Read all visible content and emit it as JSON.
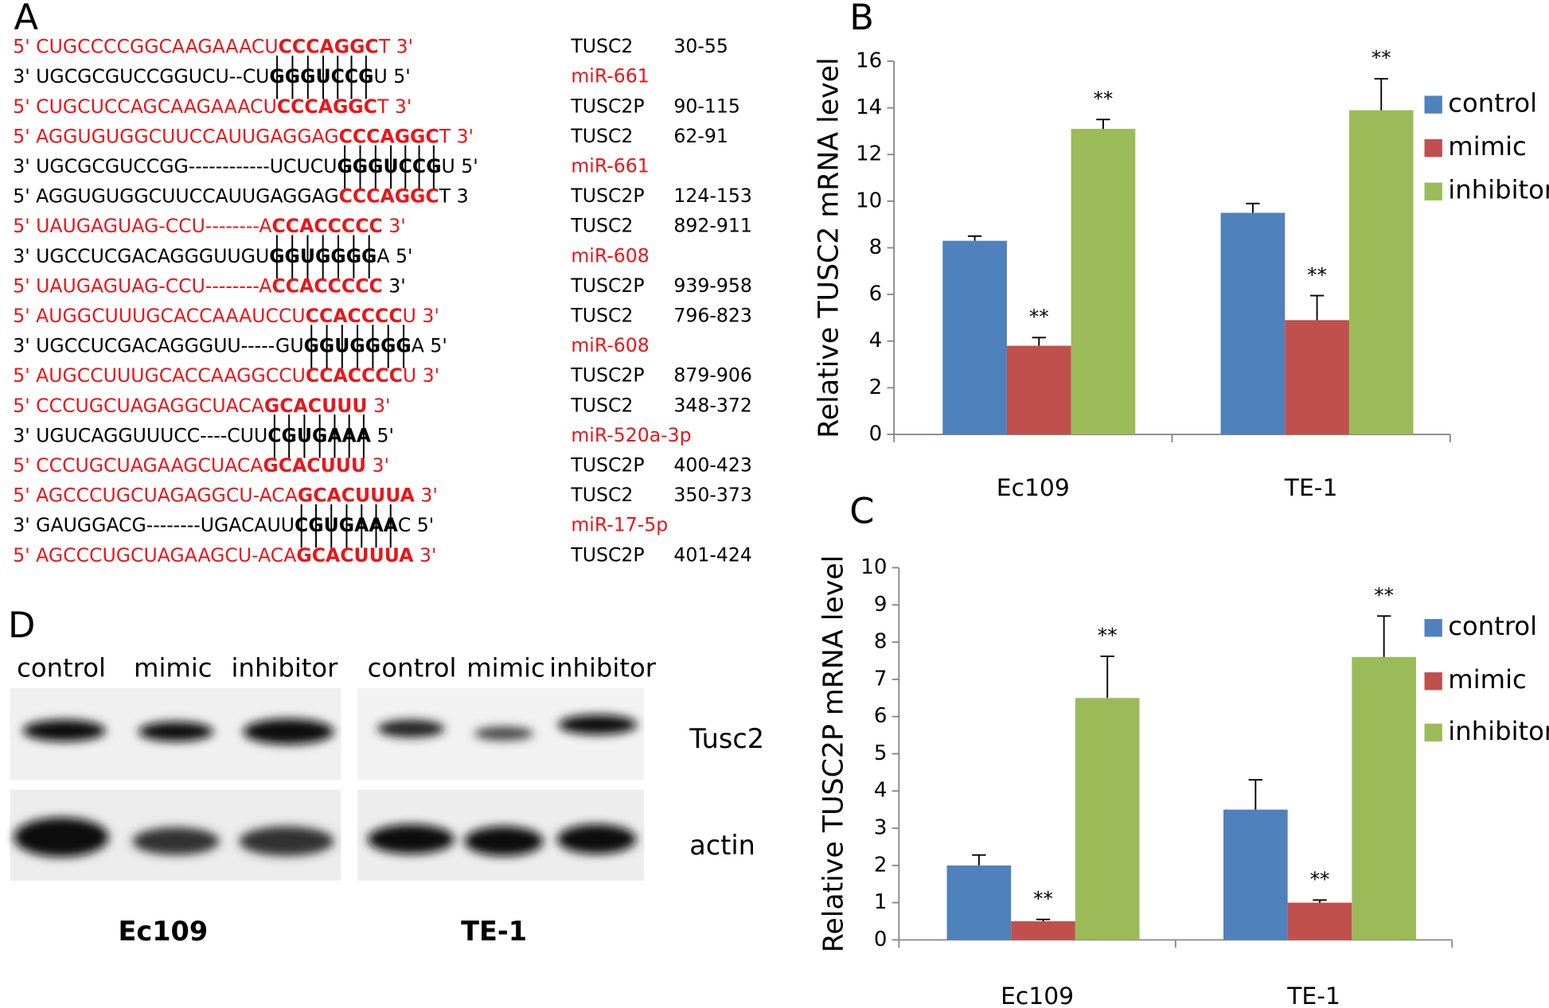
{
  "panel_labels": [
    "A",
    "B",
    "C",
    "D"
  ],
  "alignments": [
    {
      "segments": [
        {
          "text": "5' CUGCCCCGGCAAGAAACU",
          "color": "#e8161b"
        },
        {
          "text": "CCCAGGC",
          "color": "#e8161b",
          "bold": true
        },
        {
          "text": "T 3'",
          "color": "#e8161b"
        }
      ],
      "label": "TUSC2",
      "label_color": "#000000",
      "range": "30-55"
    },
    {
      "segments": [
        {
          "text": "3' UGCGCGUCCGGUCU--CU",
          "color": "#000000"
        },
        {
          "text": "GGGUCCG",
          "color": "#000000",
          "bold": true
        },
        {
          "text": "U 5'",
          "color": "#000000"
        }
      ],
      "label": "miR-661",
      "label_color": "#e8161b"
    },
    {
      "segments": [
        {
          "text": "5' CUGCUCCAGCAAGAAACU",
          "color": "#e8161b"
        },
        {
          "text": "CCCAGGC",
          "color": "#e8161b",
          "bold": true
        },
        {
          "text": "T 3'",
          "color": "#e8161b"
        }
      ],
      "label": "TUSC2P",
      "label_color": "#000000",
      "range": "90-115"
    },
    {
      "segments": [
        {
          "text": "5' AGGUGUGGCUUCCAUUGAGGAG",
          "color": "#e8161b"
        },
        {
          "text": "CCCAGGC",
          "color": "#e8161b",
          "bold": true
        },
        {
          "text": "T 3'",
          "color": "#e8161b"
        }
      ],
      "label": "TUSC2",
      "label_color": "#000000",
      "range": "62-91"
    },
    {
      "segments": [
        {
          "text": "3' UGCGCGUCCGG------------UCUCU",
          "color": "#000000"
        },
        {
          "text": "GGGUCCG",
          "color": "#000000",
          "bold": true
        },
        {
          "text": "U 5'",
          "color": "#000000"
        }
      ],
      "label": "miR-661",
      "label_color": "#e8161b"
    },
    {
      "segments": [
        {
          "text": "5' AGGUGUGGCUUCCAUUGAGGAG",
          "color": "#000000"
        },
        {
          "text": "CCCAGGC",
          "color": "#e8161b",
          "bold": true
        },
        {
          "text": "T 3",
          "color": "#000000"
        }
      ],
      "label": "TUSC2P",
      "label_color": "#000000",
      "range": "124-153"
    },
    {
      "segments": [
        {
          "text": "5' UAUGAGUAG-CCU--------A",
          "color": "#e8161b"
        },
        {
          "text": "CCACCCCC",
          "color": "#e8161b",
          "bold": true
        },
        {
          "text": " 3'",
          "color": "#e8161b"
        }
      ],
      "label": "TUSC2",
      "label_color": "#000000",
      "range": "892-911"
    },
    {
      "segments": [
        {
          "text": "3' UGCCUCGACAGGGUUGU",
          "color": "#000000"
        },
        {
          "text": "GGUGGGG",
          "color": "#000000",
          "bold": true
        },
        {
          "text": "A 5'",
          "color": "#000000"
        }
      ],
      "label": "miR-608",
      "label_color": "#e8161b"
    },
    {
      "segments": [
        {
          "text": "5' UAUGAGUAG-CCU--------A",
          "color": "#e8161b"
        },
        {
          "text": "CCACCCCC",
          "color": "#e8161b",
          "bold": true
        },
        {
          "text": " 3'",
          "color": "#000000"
        }
      ],
      "label": "TUSC2P",
      "label_color": "#000000",
      "range": "939-958"
    },
    {
      "segments": [
        {
          "text": "5' AUGGCUUUGCACCAAAUCCU",
          "color": "#e8161b"
        },
        {
          "text": "CCACCCC",
          "color": "#e8161b",
          "bold": true
        },
        {
          "text": "U 3'",
          "color": "#e8161b"
        }
      ],
      "label": "TUSC2",
      "label_color": "#000000",
      "range": "796-823"
    },
    {
      "segments": [
        {
          "text": "3' UGCCUCGACAGGGUU-----GU",
          "color": "#000000"
        },
        {
          "text": "GGUGGGG",
          "color": "#000000",
          "bold": true
        },
        {
          "text": "A 5'",
          "color": "#000000"
        }
      ],
      "label": "miR-608",
      "label_color": "#e8161b"
    },
    {
      "segments": [
        {
          "text": "5' AUGCCUUUGCACCAAGGCCU",
          "color": "#e8161b"
        },
        {
          "text": "CCACCCC",
          "color": "#e8161b",
          "bold": true
        },
        {
          "text": "U 3'",
          "color": "#e8161b"
        }
      ],
      "label": "TUSC2P",
      "label_color": "#000000",
      "range": "879-906"
    },
    {
      "segments": [
        {
          "text": "5' CCCUGCUAGAGGCUACA",
          "color": "#e8161b"
        },
        {
          "text": "GCACUUU",
          "color": "#e8161b",
          "bold": true
        },
        {
          "text": " 3'",
          "color": "#e8161b"
        }
      ],
      "label": "TUSC2",
      "label_color": "#000000",
      "range": "348-372"
    },
    {
      "segments": [
        {
          "text": "3' UGUCAGGUUUCC----CUU",
          "color": "#000000"
        },
        {
          "text": "CGUGAAA",
          "color": "#000000",
          "bold": true
        },
        {
          "text": " 5'",
          "color": "#000000"
        }
      ],
      "label": "miR-520a-3p",
      "label_color": "#e8161b"
    },
    {
      "segments": [
        {
          "text": "5' CCCUGCUAGAAGCUACA",
          "color": "#e8161b"
        },
        {
          "text": "GCACUUU",
          "color": "#e8161b",
          "bold": true
        },
        {
          "text": " 3'",
          "color": "#e8161b"
        }
      ],
      "label": "TUSC2P",
      "label_color": "#000000",
      "range": "400-423"
    },
    {
      "segments": [
        {
          "text": "5' AGCCCUGCUAGAGGCU-ACA",
          "color": "#e8161b"
        },
        {
          "text": "GCACUUUA",
          "color": "#e8161b",
          "bold": true
        },
        {
          "text": " 3'",
          "color": "#e8161b"
        }
      ],
      "label": "TUSC2",
      "label_color": "#000000",
      "range": "350-373"
    },
    {
      "segments": [
        {
          "text": "3' GAUGGACG--------UGACAUU",
          "color": "#000000"
        },
        {
          "text": "CGUGAAA",
          "color": "#000000",
          "bold": true
        },
        {
          "text": "C 5'",
          "color": "#000000"
        }
      ],
      "label": "miR-17-5p",
      "label_color": "#e8161b"
    },
    {
      "segments": [
        {
          "text": "5' AGCCCUGCUAGAAGCU-ACA",
          "color": "#e8161b"
        },
        {
          "text": "GCACUUUA",
          "color": "#e8161b",
          "bold": true
        },
        {
          "text": " 3'",
          "color": "#e8161b"
        }
      ],
      "label": "TUSC2P",
      "label_color": "#000000",
      "range": "401-424"
    }
  ],
  "chart_data": [
    {
      "type": "bar",
      "y_label": "Relative TUSC2 mRNA level",
      "categories": [
        "Ec109",
        "TE-1"
      ],
      "ylim": [
        0,
        16
      ],
      "yticks": [
        0,
        2,
        4,
        6,
        8,
        10,
        12,
        14,
        16
      ],
      "legend": "right",
      "series": [
        {
          "name": "control",
          "color": "#4f81bd",
          "values": [
            8.3,
            9.5
          ],
          "errors": [
            0.2,
            0.4
          ]
        },
        {
          "name": "mimic",
          "color": "#c0504d",
          "values": [
            3.8,
            4.9
          ],
          "errors": [
            0.35,
            1.05
          ],
          "significance": [
            "**",
            "**"
          ]
        },
        {
          "name": "inhibitor",
          "color": "#9bbb59",
          "values": [
            13.1,
            13.9
          ],
          "errors": [
            0.4,
            1.35
          ],
          "significance": [
            "**",
            "**"
          ]
        }
      ]
    },
    {
      "type": "bar",
      "y_label": "Relative TUSC2P mRNA level",
      "categories": [
        "Ec109",
        "TE-1"
      ],
      "ylim": [
        0,
        10
      ],
      "yticks": [
        0,
        1,
        2,
        3,
        4,
        5,
        6,
        7,
        8,
        9,
        10
      ],
      "legend": "right",
      "series": [
        {
          "name": "control",
          "color": "#4f81bd",
          "values": [
            2.0,
            3.5
          ],
          "errors": [
            0.28,
            0.8
          ]
        },
        {
          "name": "mimic",
          "color": "#c0504d",
          "values": [
            0.5,
            1.0
          ],
          "errors": [
            0.05,
            0.07
          ],
          "significance": [
            "**",
            "**"
          ]
        },
        {
          "name": "inhibitor",
          "color": "#9bbb59",
          "values": [
            6.5,
            7.6
          ],
          "errors": [
            1.12,
            1.1
          ],
          "significance": [
            "**",
            "**"
          ]
        }
      ]
    }
  ],
  "blot": {
    "lanes": [
      "control",
      "mimic",
      "inhibitor",
      "control",
      "mimic",
      "inhibitor"
    ],
    "bands": [
      "Tusc2",
      "actin"
    ],
    "cell_lines": [
      "Ec109",
      "TE-1"
    ]
  }
}
